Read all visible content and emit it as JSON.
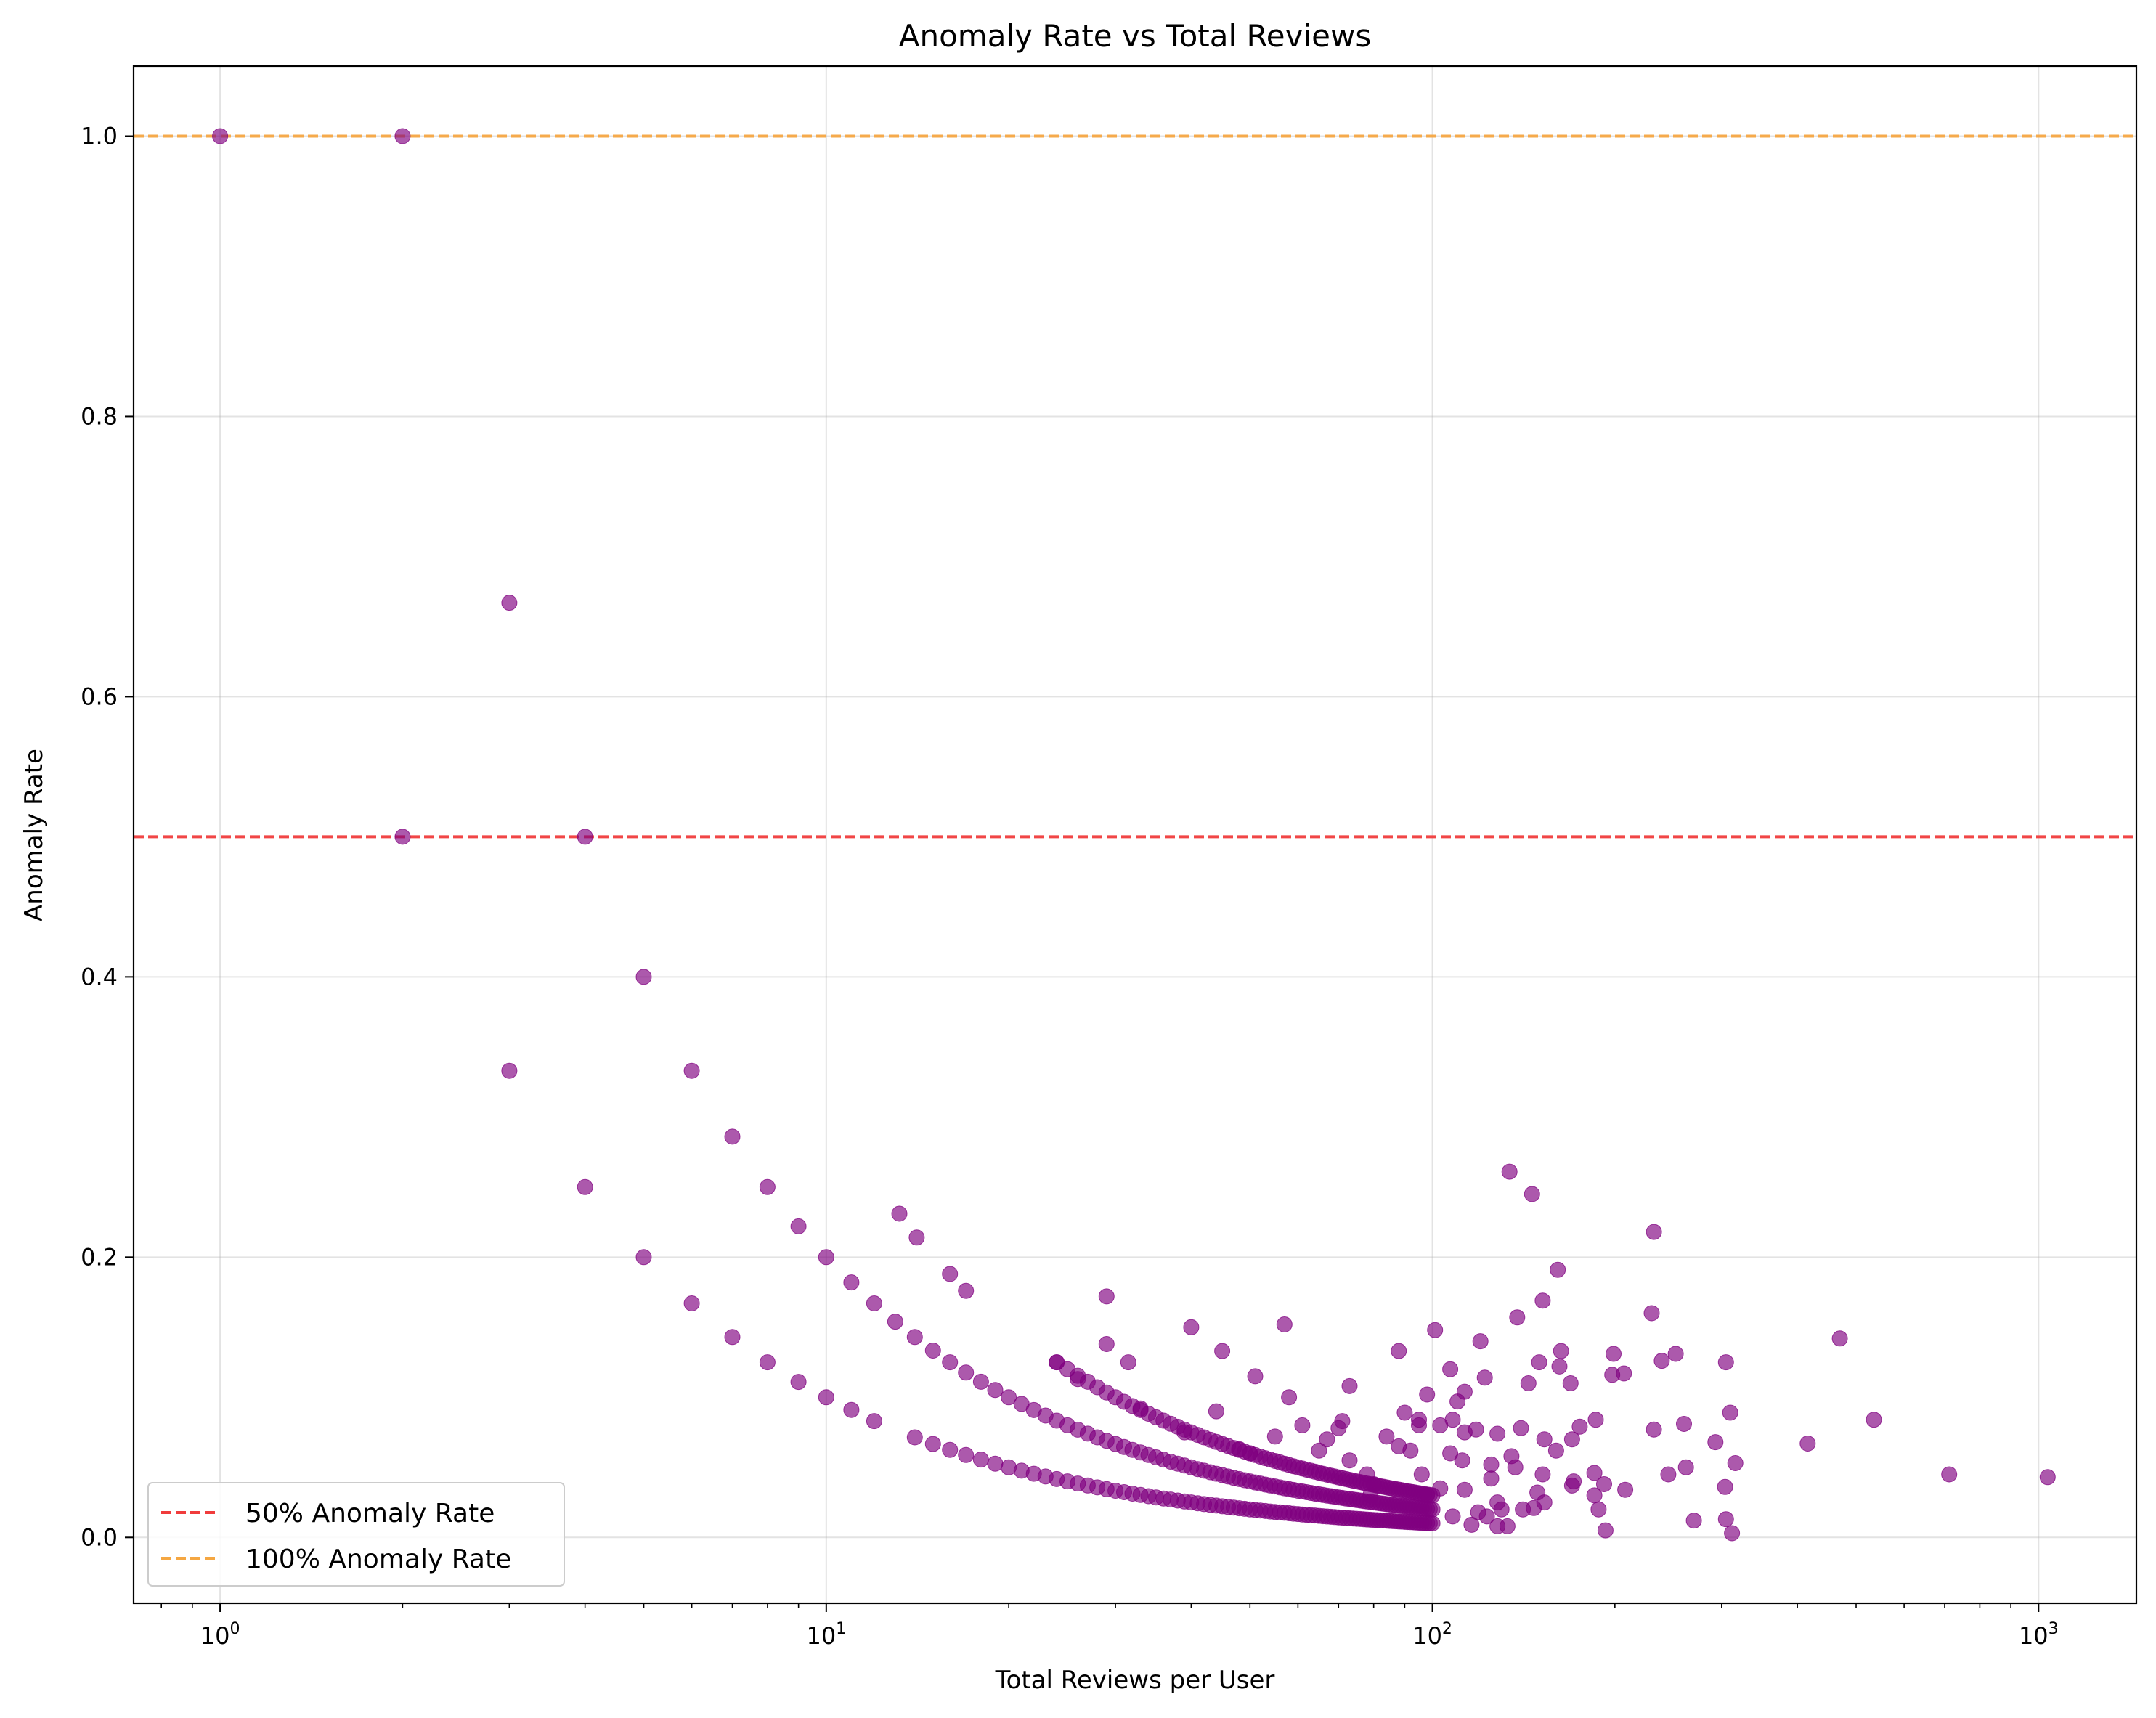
{
  "chart_data": {
    "type": "scatter",
    "title": "Anomaly Rate vs Total Reviews",
    "xlabel": "Total Reviews per User",
    "ylabel": "Anomaly Rate",
    "xscale": "log",
    "xlim": [
      0.72,
      1450
    ],
    "ylim": [
      -0.047,
      1.05
    ],
    "x_ticks": [
      1,
      10,
      100,
      1000
    ],
    "x_tick_labels": [
      {
        "base": "10",
        "exp": "0"
      },
      {
        "base": "10",
        "exp": "1"
      },
      {
        "base": "10",
        "exp": "2"
      },
      {
        "base": "10",
        "exp": "3"
      }
    ],
    "y_ticks": [
      0.0,
      0.2,
      0.4,
      0.6,
      0.8,
      1.0
    ],
    "y_tick_labels": [
      "0.0",
      "0.2",
      "0.4",
      "0.6",
      "0.8",
      "1.0"
    ],
    "grid": true,
    "point_color": "#800080",
    "point_alpha": 0.65,
    "reference_lines": [
      {
        "y": 0.5,
        "label": "50% Anomaly Rate",
        "color": "#f03c3c",
        "style": "dashed"
      },
      {
        "y": 1.0,
        "label": "100% Anomaly Rate",
        "color": "#f5a742",
        "style": "dashed"
      }
    ],
    "legend_position": "lower-left",
    "series": [
      {
        "points": [
          [
            1,
            1.0
          ],
          [
            2,
            1.0
          ],
          [
            3,
            0.667
          ],
          [
            2,
            0.5
          ],
          [
            4,
            0.5
          ],
          [
            5,
            0.4
          ],
          [
            3,
            0.333
          ],
          [
            6,
            0.333
          ],
          [
            7,
            0.286
          ],
          [
            4,
            0.25
          ],
          [
            8,
            0.25
          ],
          [
            9,
            0.222
          ],
          [
            5,
            0.2
          ],
          [
            10,
            0.2
          ],
          [
            11,
            0.182
          ],
          [
            6,
            0.167
          ],
          [
            12,
            0.167
          ],
          [
            13,
            0.154
          ],
          [
            7,
            0.143
          ],
          [
            14,
            0.143
          ],
          [
            8,
            0.125
          ],
          [
            9,
            0.111
          ],
          [
            10,
            0.1
          ],
          [
            11,
            0.091
          ],
          [
            12,
            0.083
          ],
          [
            13.2,
            0.231
          ],
          [
            14.1,
            0.214
          ],
          [
            16,
            0.188
          ],
          [
            17,
            0.176
          ],
          [
            29,
            0.172
          ],
          [
            134,
            0.261
          ],
          [
            146,
            0.245
          ],
          [
            232,
            0.218
          ],
          [
            161,
            0.191
          ],
          [
            152,
            0.169
          ],
          [
            230,
            0.16
          ],
          [
            138,
            0.157
          ],
          [
            57,
            0.152
          ],
          [
            40,
            0.15
          ],
          [
            101,
            0.148
          ],
          [
            470,
            0.142
          ],
          [
            29,
            0.138
          ],
          [
            120,
            0.14
          ],
          [
            88,
            0.133
          ],
          [
            163,
            0.133
          ],
          [
            45,
            0.133
          ],
          [
            199,
            0.131
          ],
          [
            252,
            0.131
          ],
          [
            24,
            0.125
          ],
          [
            31.5,
            0.125
          ],
          [
            150,
            0.125
          ],
          [
            305,
            0.125
          ],
          [
            239,
            0.126
          ],
          [
            107,
            0.12
          ],
          [
            162,
            0.122
          ],
          [
            207,
            0.117
          ],
          [
            198,
            0.116
          ],
          [
            51,
            0.115
          ],
          [
            122,
            0.114
          ],
          [
            169,
            0.11
          ],
          [
            73,
            0.108
          ],
          [
            113,
            0.104
          ],
          [
            144,
            0.11
          ],
          [
            33,
            0.092
          ],
          [
            58,
            0.1
          ],
          [
            98,
            0.102
          ],
          [
            110,
            0.097
          ],
          [
            26,
            0.113
          ],
          [
            39,
            0.075
          ],
          [
            44,
            0.09
          ],
          [
            310,
            0.089
          ],
          [
            90,
            0.089
          ],
          [
            95,
            0.084
          ],
          [
            535,
            0.084
          ],
          [
            61,
            0.08
          ],
          [
            71,
            0.083
          ],
          [
            108,
            0.084
          ],
          [
            186,
            0.084
          ],
          [
            260,
            0.081
          ],
          [
            70,
            0.078
          ],
          [
            95,
            0.08
          ],
          [
            103,
            0.08
          ],
          [
            118,
            0.077
          ],
          [
            140,
            0.078
          ],
          [
            232,
            0.077
          ],
          [
            175,
            0.079
          ],
          [
            55,
            0.072
          ],
          [
            84,
            0.072
          ],
          [
            67,
            0.07
          ],
          [
            113,
            0.075
          ],
          [
            128,
            0.074
          ],
          [
            153,
            0.07
          ],
          [
            170,
            0.07
          ],
          [
            293,
            0.068
          ],
          [
            416,
            0.067
          ],
          [
            48,
            0.063
          ],
          [
            65,
            0.062
          ],
          [
            88,
            0.065
          ],
          [
            92,
            0.062
          ],
          [
            107,
            0.06
          ],
          [
            135,
            0.058
          ],
          [
            160,
            0.062
          ],
          [
            316,
            0.053
          ],
          [
            50,
            0.06
          ],
          [
            73,
            0.055
          ],
          [
            112,
            0.055
          ],
          [
            125,
            0.052
          ],
          [
            152,
            0.045
          ],
          [
            185,
            0.046
          ],
          [
            245,
            0.045
          ],
          [
            262,
            0.05
          ],
          [
            712,
            0.045
          ],
          [
            1035,
            0.043
          ],
          [
            78,
            0.045
          ],
          [
            96,
            0.045
          ],
          [
            125,
            0.042
          ],
          [
            137,
            0.05
          ],
          [
            171,
            0.04
          ],
          [
            192,
            0.038
          ],
          [
            208,
            0.034
          ],
          [
            304,
            0.036
          ],
          [
            80,
            0.038
          ],
          [
            103,
            0.035
          ],
          [
            113,
            0.034
          ],
          [
            149,
            0.032
          ],
          [
            185,
            0.03
          ],
          [
            153,
            0.025
          ],
          [
            128,
            0.025
          ],
          [
            98,
            0.03
          ],
          [
            79,
            0.03
          ],
          [
            141,
            0.02
          ],
          [
            188,
            0.02
          ],
          [
            119,
            0.018
          ],
          [
            130,
            0.02
          ],
          [
            108,
            0.015
          ],
          [
            123,
            0.015
          ],
          [
            270,
            0.012
          ],
          [
            305,
            0.013
          ],
          [
            128,
            0.008
          ],
          [
            133,
            0.008
          ],
          [
            193,
            0.005
          ],
          [
            312,
            0.003
          ],
          [
            170,
            0.037
          ],
          [
            147,
            0.021
          ],
          [
            116,
            0.009
          ]
        ],
        "curves": [
          {
            "k": 1,
            "n_min": 14,
            "n_max": 100
          },
          {
            "k": 2,
            "n_min": 15,
            "n_max": 100
          },
          {
            "k": 3,
            "n_min": 24,
            "n_max": 100
          }
        ]
      }
    ]
  }
}
